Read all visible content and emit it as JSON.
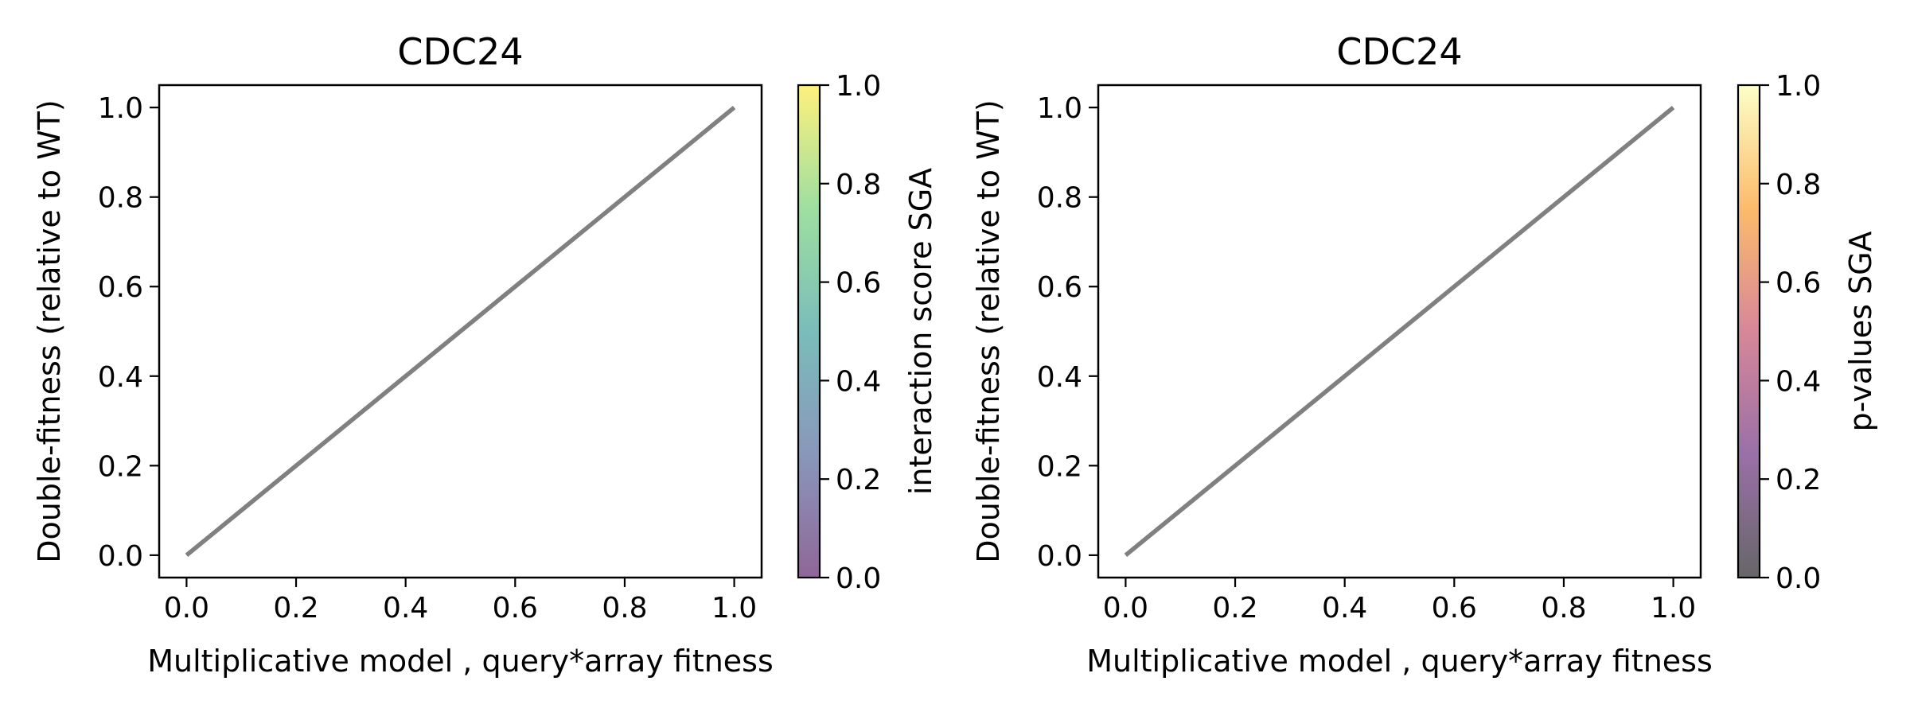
{
  "chart_data": [
    {
      "type": "line",
      "title": "CDC24",
      "xlabel": "Multiplicative model , query*array fitness",
      "ylabel": "Double-fitness (relative to WT)",
      "xlim": [
        -0.05,
        1.05
      ],
      "ylim": [
        -0.05,
        1.05
      ],
      "xticks": [
        "0.0",
        "0.2",
        "0.4",
        "0.6",
        "0.8",
        "1.0"
      ],
      "yticks": [
        "0.0",
        "0.2",
        "0.4",
        "0.6",
        "0.8",
        "1.0"
      ],
      "grid": false,
      "series": [
        {
          "x": [
            0.0,
            1.0
          ],
          "y": [
            0.0,
            1.0
          ],
          "color": "#808080"
        }
      ],
      "colorbar": {
        "label": "interaction score SGA",
        "range": [
          0.0,
          1.0
        ],
        "ticks": [
          "0.0",
          "0.2",
          "0.4",
          "0.6",
          "0.8",
          "1.0"
        ],
        "colormap": "viridis",
        "alpha": 0.6
      }
    },
    {
      "type": "line",
      "title": "CDC24",
      "xlabel": "Multiplicative model , query*array fitness",
      "ylabel": "Double-fitness (relative to WT)",
      "xlim": [
        -0.05,
        1.05
      ],
      "ylim": [
        -0.05,
        1.05
      ],
      "xticks": [
        "0.0",
        "0.2",
        "0.4",
        "0.6",
        "0.8",
        "1.0"
      ],
      "yticks": [
        "0.0",
        "0.2",
        "0.4",
        "0.6",
        "0.8",
        "1.0"
      ],
      "grid": false,
      "series": [
        {
          "x": [
            0.0,
            1.0
          ],
          "y": [
            0.0,
            1.0
          ],
          "color": "#808080"
        }
      ],
      "colorbar": {
        "label": "p-values SGA",
        "range": [
          0.0,
          1.0
        ],
        "ticks": [
          "0.0",
          "0.2",
          "0.4",
          "0.6",
          "0.8",
          "1.0"
        ],
        "colormap": "inferno",
        "alpha": 0.6
      }
    }
  ]
}
